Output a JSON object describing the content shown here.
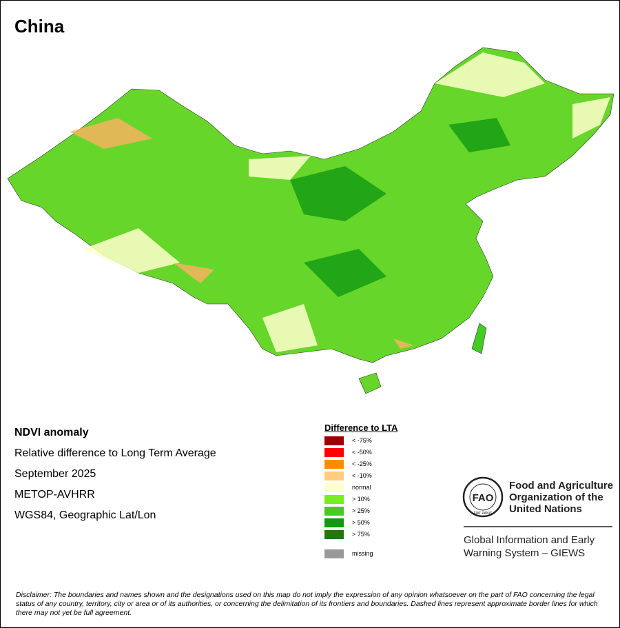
{
  "title": "China",
  "map_info": {
    "lines": [
      "NDVI anomaly",
      "Relative difference to Long Term Average",
      "September 2025",
      "METOP-AVHRR",
      "WGS84, Geographic Lat/Lon"
    ]
  },
  "legend": {
    "title": "Difference to LTA",
    "items": [
      {
        "label": "< -75%",
        "color": "#990000"
      },
      {
        "label": "< -50%",
        "color": "#ff0000"
      },
      {
        "label": "< -25%",
        "color": "#ff8c00"
      },
      {
        "label": "< -10%",
        "color": "#ffcc80"
      },
      {
        "label": "normal",
        "color": "#ffffcc"
      },
      {
        "label": "> 10%",
        "color": "#77ee22"
      },
      {
        "label": "> 25%",
        "color": "#44cc22"
      },
      {
        "label": "> 50%",
        "color": "#119911"
      },
      {
        "label": "> 75%",
        "color": "#227711"
      }
    ],
    "missing": {
      "label": "missing",
      "color": "#999999"
    }
  },
  "logo": {
    "emblem": [
      "FAO",
      "FIAT PANIS"
    ],
    "org_lines": [
      "Food and Agriculture",
      "Organization of the",
      "United Nations"
    ],
    "system_lines": [
      "Global Information and Early",
      "Warning System – GIEWS"
    ]
  },
  "disclaimer": "Disclaimer: The boundaries and names shown and the designations used on this map do not imply the expression of any opinion whatsoever on the part of FAO concerning the legal status of any country, territory, city or area or of its authorities, or concerning the delimitation of its frontiers and boundaries. Dashed lines represent approximate border lines for which there may not yet be full agreement."
}
